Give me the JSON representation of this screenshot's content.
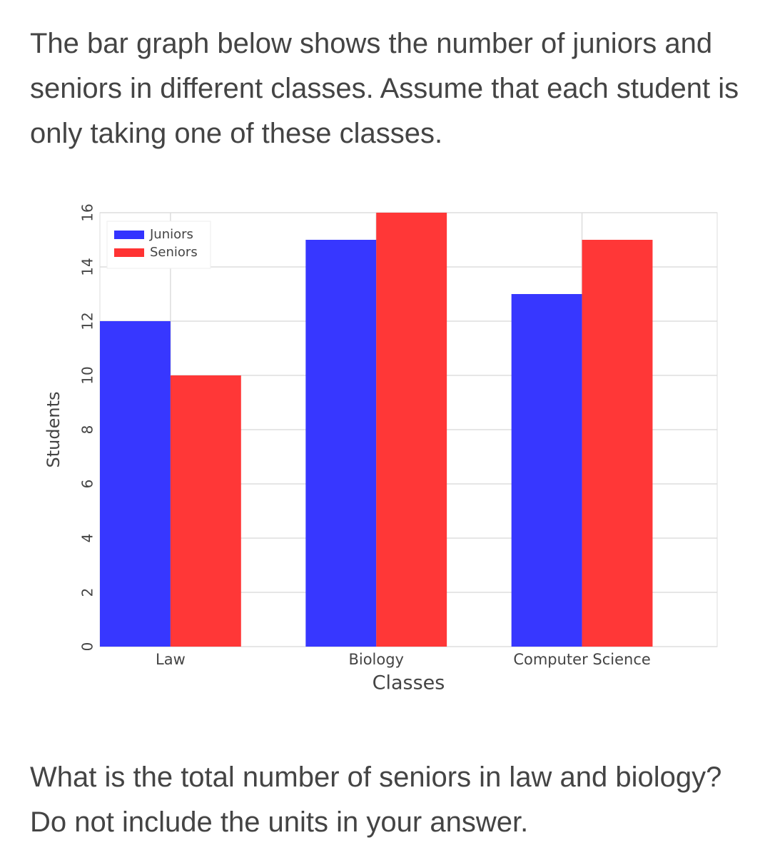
{
  "intro": "The bar graph below shows the number of juniors and seniors in different classes. Assume that each student is only taking one of these classes.",
  "chart_data": {
    "type": "bar",
    "xlabel": "Classes",
    "ylabel": "Students",
    "categories": [
      "Law",
      "Biology",
      "Computer Science"
    ],
    "series": [
      {
        "name": "Juniors",
        "color": "#3333ff",
        "values": [
          12,
          15,
          13
        ]
      },
      {
        "name": "Seniors",
        "color": "#ff3333",
        "values": [
          10,
          16,
          15
        ]
      }
    ],
    "ylim": [
      0,
      16
    ],
    "yticks": [
      0,
      2,
      4,
      6,
      8,
      10,
      12,
      14,
      16
    ],
    "grid": true,
    "legend": "upper left"
  },
  "question": "What is the total number of seniors in law and biology? Do not include the units in your answer."
}
